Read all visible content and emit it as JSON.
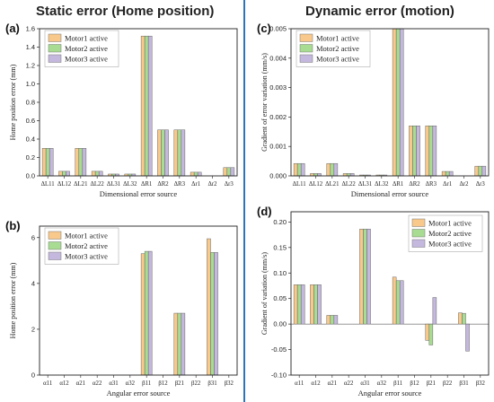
{
  "headings": {
    "left": "Static error (Home position)",
    "right": "Dynamic error (motion)"
  },
  "colors": {
    "motor1": "#f9c98b",
    "motor2": "#a8dc92",
    "motor3": "#c5b8de",
    "divider": "#2e75b6"
  },
  "chart_data": [
    {
      "panel": "(a)",
      "type": "bar",
      "xlabel": "Dimensional error source",
      "ylabel": "Home position error (mm)",
      "ylim": [
        0,
        1.6
      ],
      "yticks": [
        "0.0",
        "0.2",
        "0.4",
        "0.6",
        "0.8",
        "1.0",
        "1.2",
        "1.4",
        "1.6"
      ],
      "legend_position": "top-left",
      "categories": [
        "ΔL11",
        "ΔL12",
        "ΔL21",
        "ΔL22",
        "ΔL31",
        "ΔL32",
        "ΔR1",
        "ΔR2",
        "ΔR3",
        "Δr1",
        "Δr2",
        "Δr3"
      ],
      "series": [
        {
          "name": "Motor1 active",
          "values": [
            0.3,
            0.05,
            0.3,
            0.05,
            0.02,
            0.02,
            1.52,
            0.5,
            0.5,
            0.04,
            0,
            0.09
          ]
        },
        {
          "name": "Motor2 active",
          "values": [
            0.3,
            0.05,
            0.3,
            0.05,
            0.02,
            0.02,
            1.52,
            0.5,
            0.5,
            0.04,
            0,
            0.09
          ]
        },
        {
          "name": "Motor3 active",
          "values": [
            0.3,
            0.05,
            0.3,
            0.05,
            0.02,
            0.02,
            1.52,
            0.5,
            0.5,
            0.04,
            0,
            0.09
          ]
        }
      ]
    },
    {
      "panel": "(c)",
      "type": "bar",
      "xlabel": "Dimensional error source",
      "ylabel": "Gradient of error variation (mm/s)",
      "ylim": [
        0,
        0.005
      ],
      "yticks": [
        "0.000",
        "0.001",
        "0.002",
        "0.003",
        "0.004",
        "0.005"
      ],
      "legend_position": "top-left",
      "categories": [
        "ΔL11",
        "ΔL12",
        "ΔL21",
        "ΔL22",
        "ΔL31",
        "ΔL32",
        "ΔR1",
        "ΔR2",
        "ΔR3",
        "Δr1",
        "Δr2",
        "Δr3"
      ],
      "series": [
        {
          "name": "Motor1 active",
          "values": [
            0.00042,
            8e-05,
            0.00042,
            8e-05,
            3e-05,
            3e-05,
            0.005,
            0.0017,
            0.0017,
            0.00015,
            0,
            0.00033
          ]
        },
        {
          "name": "Motor2 active",
          "values": [
            0.00042,
            8e-05,
            0.00042,
            8e-05,
            3e-05,
            3e-05,
            0.005,
            0.0017,
            0.0017,
            0.00015,
            0,
            0.00033
          ]
        },
        {
          "name": "Motor3 active",
          "values": [
            0.00042,
            8e-05,
            0.00042,
            8e-05,
            3e-05,
            3e-05,
            0.005,
            0.0017,
            0.0017,
            0.00015,
            0,
            0.00033
          ]
        }
      ]
    },
    {
      "panel": "(b)",
      "type": "bar",
      "xlabel": "Angular error source",
      "ylabel": "Home position error (mm)",
      "ylim": [
        0,
        6.5
      ],
      "yticks": [
        "0",
        "2",
        "4",
        "6"
      ],
      "legend_position": "top-left",
      "categories": [
        "α11",
        "α12",
        "α21",
        "α22",
        "α31",
        "α32",
        "β11",
        "β12",
        "β21",
        "β22",
        "β31",
        "β32"
      ],
      "series": [
        {
          "name": "Motor1 active",
          "values": [
            0,
            0,
            0,
            0,
            0,
            0,
            5.3,
            0,
            2.7,
            0,
            5.95,
            0
          ]
        },
        {
          "name": "Motor2 active",
          "values": [
            0,
            0,
            0,
            0,
            0,
            0,
            5.4,
            0,
            2.7,
            0,
            5.35,
            0
          ]
        },
        {
          "name": "Motor3 active",
          "values": [
            0,
            0,
            0,
            0,
            0,
            0,
            5.4,
            0,
            2.7,
            0,
            5.35,
            0
          ]
        }
      ]
    },
    {
      "panel": "(d)",
      "type": "bar",
      "xlabel": "Angular error source",
      "ylabel": "Gradient of variation (mm/s)",
      "ylim": [
        -0.1,
        0.22
      ],
      "yticks": [
        "-0.10",
        "-0.05",
        "0.00",
        "0.05",
        "0.10",
        "0.15",
        "0.20"
      ],
      "legend_position": "top-right",
      "categories": [
        "α11",
        "α12",
        "α21",
        "α22",
        "α31",
        "α32",
        "β11",
        "β12",
        "β21",
        "β22",
        "β31",
        "β32"
      ],
      "series": [
        {
          "name": "Motor1 active",
          "values": [
            0.077,
            0.077,
            0.017,
            0,
            0.186,
            0,
            0.092,
            0,
            -0.032,
            0,
            0.022,
            0
          ]
        },
        {
          "name": "Motor2 active",
          "values": [
            0.077,
            0.077,
            0.017,
            0,
            0.186,
            0,
            0.085,
            0,
            -0.041,
            0,
            0.021,
            0
          ]
        },
        {
          "name": "Motor3 active",
          "values": [
            0.077,
            0.077,
            0.017,
            0,
            0.186,
            0,
            0.085,
            0,
            0.052,
            0,
            -0.053,
            0
          ]
        }
      ]
    }
  ]
}
